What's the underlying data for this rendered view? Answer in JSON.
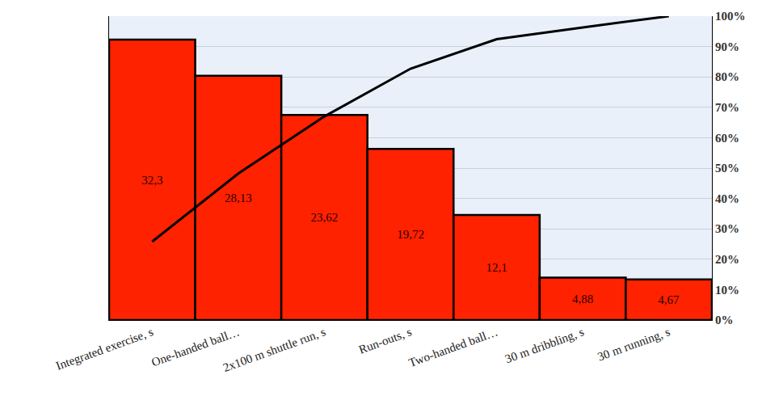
{
  "chart_data": {
    "type": "bar",
    "categories": [
      "Integrated exercise, s",
      "One-handed ball…",
      "2x100 m shuttle run, s",
      "Run-outs, s",
      "Two-handed ball…",
      "30 m dribbling, s",
      "30 m running, s"
    ],
    "series": [
      {
        "type": "bar",
        "color": "#ff2200",
        "values": [
          32.3,
          28.13,
          23.62,
          19.72,
          12.1,
          4.88,
          4.67
        ],
        "value_labels": [
          "32,3",
          "28,13",
          "23,62",
          "19,72",
          "12,1",
          "4,88",
          "4,67"
        ],
        "data_labels": true
      },
      {
        "type": "line",
        "axis": "y2",
        "color": "#000000",
        "values": [
          25.8,
          48.2,
          67.0,
          82.7,
          92.4,
          96.3,
          100
        ]
      }
    ],
    "ylim": [
      0,
      35
    ],
    "yticks": [],
    "y2lim": [
      0,
      100
    ],
    "y2ticks": [
      {
        "value": 0,
        "label": "0%"
      },
      {
        "value": 10,
        "label": "10%"
      },
      {
        "value": 20,
        "label": "20%"
      },
      {
        "value": 30,
        "label": "30%"
      },
      {
        "value": 40,
        "label": "40%"
      },
      {
        "value": 50,
        "label": "50%"
      },
      {
        "value": 60,
        "label": "60%"
      },
      {
        "value": 70,
        "label": "70%"
      },
      {
        "value": 80,
        "label": "80%"
      },
      {
        "value": 90,
        "label": "90%"
      },
      {
        "value": 100,
        "label": "100%"
      }
    ],
    "grid": true
  }
}
